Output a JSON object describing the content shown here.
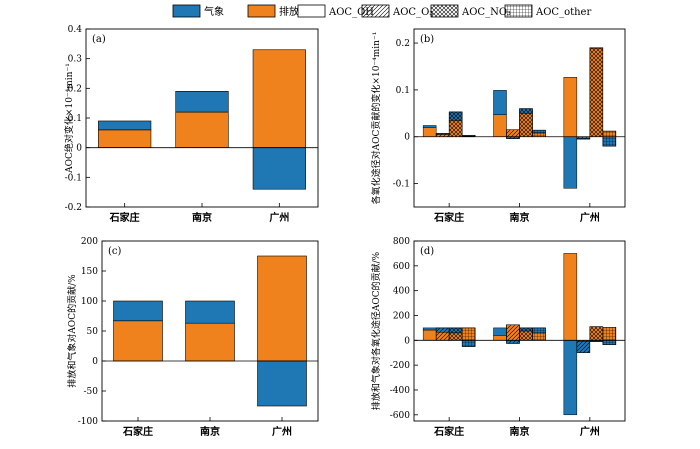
{
  "colors": {
    "meteo": "#1f77b4",
    "emis": "#f0821e",
    "axis": "#000000"
  },
  "legend": [
    {
      "label": "气象",
      "style": "solid-meteo"
    },
    {
      "label": "排放",
      "style": "solid-emis"
    },
    {
      "label": "AOC_OH",
      "style": "white"
    },
    {
      "label": "AOC_O₃",
      "style": "diag"
    },
    {
      "label": "AOC_NO₃",
      "style": "cross"
    },
    {
      "label": "AOC_other",
      "style": "grid"
    }
  ],
  "chart_data": [
    {
      "id": "a",
      "panel_label": "(a)",
      "type": "bar",
      "stacked": true,
      "ylabel": "AOC绝对变化×10⁻⁴min⁻¹",
      "categories": [
        "石家庄",
        "南京",
        "广州"
      ],
      "ylim": [
        -0.2,
        0.4
      ],
      "yticks": [
        "-0.2",
        "-0.1",
        "0",
        "0.1",
        "0.2",
        "0.3",
        "0.4"
      ],
      "series": [
        {
          "name": "排放",
          "values": [
            0.06,
            0.12,
            0.33
          ]
        },
        {
          "name": "气象",
          "values": [
            0.03,
            0.07,
            -0.14
          ]
        }
      ]
    },
    {
      "id": "b",
      "panel_label": "(b)",
      "type": "bar",
      "stacked": true,
      "ylabel": "各氧化途径对AOC贡献的变化×10⁻⁴min⁻¹",
      "categories": [
        "石家庄",
        "南京",
        "广州"
      ],
      "sub_pathways": [
        "AOC_OH",
        "AOC_O₃",
        "AOC_NO₃",
        "AOC_other"
      ],
      "ylim": [
        -0.15,
        0.23
      ],
      "yticks": [
        "-0.1",
        "0",
        "0.1",
        "0.2"
      ],
      "series": [
        {
          "name": "排放",
          "values": [
            [
              0.02,
              0.005,
              0.035,
              0.001
            ],
            [
              0.047,
              0.015,
              0.05,
              0.008
            ],
            [
              0.127,
              -0.003,
              0.19,
              0.012
            ]
          ]
        },
        {
          "name": "气象",
          "values": [
            [
              0.004,
              0.002,
              0.018,
              0.002
            ],
            [
              0.052,
              -0.004,
              0.01,
              0.006
            ],
            [
              -0.11,
              -0.002,
              0.0,
              -0.02
            ]
          ]
        }
      ]
    },
    {
      "id": "c",
      "panel_label": "(c)",
      "type": "bar",
      "stacked": true,
      "ylabel": "排放和气象对AOC的贡献/%",
      "categories": [
        "石家庄",
        "南京",
        "广州"
      ],
      "ylim": [
        -100,
        200
      ],
      "yticks": [
        "-100",
        "-50",
        "0",
        "50",
        "100",
        "150",
        "200"
      ],
      "series": [
        {
          "name": "排放",
          "values": [
            67,
            63,
            175
          ]
        },
        {
          "name": "气象",
          "values": [
            33,
            37,
            -75
          ]
        }
      ]
    },
    {
      "id": "d",
      "panel_label": "(d)",
      "type": "bar",
      "stacked": true,
      "ylabel": "排放和气象对各氧化途径AOC的贡献/%",
      "categories": [
        "石家庄",
        "南京",
        "广州"
      ],
      "sub_pathways": [
        "AOC_OH",
        "AOC_O₃",
        "AOC_NO₃",
        "AOC_other"
      ],
      "ylim": [
        -650,
        800
      ],
      "yticks": [
        "-600",
        "-400",
        "-200",
        "0",
        "200",
        "400",
        "600",
        "800"
      ],
      "series": [
        {
          "name": "排放",
          "values": [
            [
              83,
              65,
              60,
              100
            ],
            [
              40,
              125,
              75,
              60
            ],
            [
              700,
              -10,
              110,
              105
            ]
          ]
        },
        {
          "name": "气象",
          "values": [
            [
              17,
              35,
              40,
              -50
            ],
            [
              60,
              -25,
              25,
              40
            ],
            [
              -600,
              -90,
              -10,
              -35
            ]
          ]
        }
      ]
    }
  ]
}
